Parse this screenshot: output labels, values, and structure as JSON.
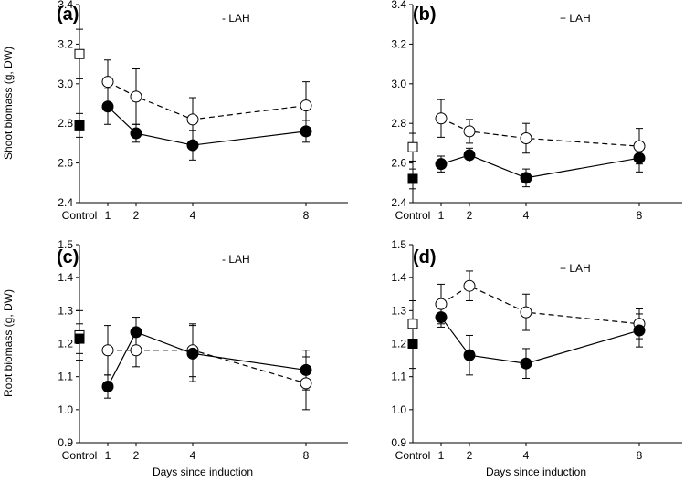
{
  "xlabel": "Days since induction",
  "panels": [
    {
      "label": "(a)",
      "annotation": "- LAH",
      "ylabel": "Shoot biomass (g, DW)",
      "ylim": [
        2.4,
        3.4
      ],
      "yticks": [
        "2.4",
        "2.6",
        "2.8",
        "3.0",
        "3.2",
        "3.4"
      ],
      "control": {
        "open": {
          "y": 3.15,
          "err": 0.125
        },
        "filled": {
          "y": 2.79,
          "err": 0.06
        }
      },
      "open": {
        "x": [
          1,
          2,
          4,
          8
        ],
        "y": [
          3.01,
          2.935,
          2.82,
          2.89
        ],
        "err": [
          0.11,
          0.14,
          0.11,
          0.12
        ]
      },
      "filled": {
        "x": [
          1,
          2,
          4,
          8
        ],
        "y": [
          2.885,
          2.75,
          2.69,
          2.76
        ],
        "err": [
          0.09,
          0.045,
          0.075,
          0.055
        ]
      }
    },
    {
      "label": "(b)",
      "annotation": "+ LAH",
      "ylabel": "",
      "ylim": [
        2.4,
        3.4
      ],
      "yticks": [
        "2.4",
        "2.6",
        "2.8",
        "3.0",
        "3.2",
        "3.4"
      ],
      "control": {
        "open": {
          "y": 2.68,
          "err": 0.07
        },
        "filled": {
          "y": 2.52,
          "err": 0.05
        }
      },
      "open": {
        "x": [
          1,
          2,
          4,
          8
        ],
        "y": [
          2.825,
          2.76,
          2.725,
          2.685
        ],
        "err": [
          0.095,
          0.06,
          0.075,
          0.09
        ]
      },
      "filled": {
        "x": [
          1,
          2,
          4,
          8
        ],
        "y": [
          2.595,
          2.64,
          2.525,
          2.625
        ],
        "err": [
          0.04,
          0.035,
          0.045,
          0.07
        ]
      }
    },
    {
      "label": "(c)",
      "annotation": "- LAH",
      "ylabel": "Root biomass (g, DW)",
      "ylim": [
        0.9,
        1.5
      ],
      "yticks": [
        "0.9",
        "1.0",
        "1.1",
        "1.2",
        "1.3",
        "1.4",
        "1.5"
      ],
      "control": {
        "open": {
          "y": 1.225,
          "err": 0.075
        },
        "filled": {
          "y": 1.215,
          "err": 0.045
        }
      },
      "open": {
        "x": [
          1,
          2,
          4,
          8
        ],
        "y": [
          1.18,
          1.18,
          1.18,
          1.08
        ],
        "err": [
          0.075,
          0.05,
          0.08,
          0.08
        ]
      },
      "filled": {
        "x": [
          1,
          2,
          4,
          8
        ],
        "y": [
          1.07,
          1.235,
          1.17,
          1.12
        ],
        "err": [
          0.035,
          0.045,
          0.085,
          0.06
        ]
      }
    },
    {
      "label": "(d)",
      "annotation": "+ LAH",
      "ylabel": "",
      "ylim": [
        0.9,
        1.5
      ],
      "yticks": [
        "0.9",
        "1.0",
        "1.1",
        "1.2",
        "1.3",
        "1.4",
        "1.5"
      ],
      "control": {
        "open": {
          "y": 1.26,
          "err": 0.07
        },
        "filled": {
          "y": 1.2,
          "err": 0.075
        }
      },
      "open": {
        "x": [
          1,
          2,
          4,
          8
        ],
        "y": [
          1.32,
          1.375,
          1.295,
          1.26
        ],
        "err": [
          0.06,
          0.045,
          0.055,
          0.045
        ]
      },
      "filled": {
        "x": [
          1,
          2,
          4,
          8
        ],
        "y": [
          1.28,
          1.165,
          1.14,
          1.24
        ],
        "err": [
          0.03,
          0.06,
          0.045,
          0.05
        ]
      }
    }
  ],
  "xticks": [
    "Control",
    "1",
    "2",
    "4",
    "8"
  ],
  "chart_data": {
    "type": "scatter",
    "title": "",
    "xlabel": "Days since induction",
    "categories": [
      "Control",
      "1",
      "2",
      "4",
      "8"
    ],
    "panels": [
      {
        "panel": "(a)",
        "ylabel": "Shoot biomass (g, DW)",
        "ylim": [
          2.4,
          3.4
        ],
        "series": [
          {
            "name": "open (dashed)",
            "x": [
              "Control",
              1,
              2,
              4,
              8
            ],
            "values": [
              3.15,
              3.01,
              2.935,
              2.82,
              2.89
            ]
          },
          {
            "name": "filled (solid)",
            "x": [
              "Control",
              1,
              2,
              4,
              8
            ],
            "values": [
              2.79,
              2.885,
              2.75,
              2.69,
              2.76
            ]
          }
        ]
      },
      {
        "panel": "(b)",
        "ylabel": "Shoot biomass (g, DW)",
        "ylim": [
          2.4,
          3.4
        ],
        "series": [
          {
            "name": "open (dashed)",
            "x": [
              "Control",
              1,
              2,
              4,
              8
            ],
            "values": [
              2.68,
              2.825,
              2.76,
              2.725,
              2.685
            ]
          },
          {
            "name": "filled (solid)",
            "x": [
              "Control",
              1,
              2,
              4,
              8
            ],
            "values": [
              2.52,
              2.595,
              2.64,
              2.525,
              2.625
            ]
          }
        ]
      },
      {
        "panel": "(c)",
        "ylabel": "Root biomass (g, DW)",
        "ylim": [
          0.9,
          1.5
        ],
        "series": [
          {
            "name": "open (dashed)",
            "x": [
              "Control",
              1,
              2,
              4,
              8
            ],
            "values": [
              1.225,
              1.18,
              1.18,
              1.18,
              1.08
            ]
          },
          {
            "name": "filled (solid)",
            "x": [
              "Control",
              1,
              2,
              4,
              8
            ],
            "values": [
              1.215,
              1.07,
              1.235,
              1.17,
              1.12
            ]
          }
        ]
      },
      {
        "panel": "(d)",
        "ylabel": "Root biomass (g, DW)",
        "ylim": [
          0.9,
          1.5
        ],
        "series": [
          {
            "name": "open (dashed)",
            "x": [
              "Control",
              1,
              2,
              4,
              8
            ],
            "values": [
              1.26,
              1.32,
              1.375,
              1.295,
              1.26
            ]
          },
          {
            "name": "filled (solid)",
            "x": [
              "Control",
              1,
              2,
              4,
              8
            ],
            "values": [
              1.2,
              1.28,
              1.165,
              1.14,
              1.24
            ]
          }
        ]
      }
    ]
  }
}
